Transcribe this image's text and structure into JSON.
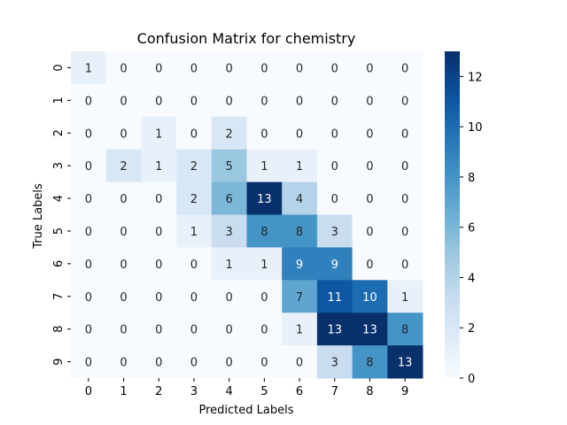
{
  "chart_data": {
    "type": "heatmap",
    "title": "Confusion Matrix for chemistry",
    "xlabel": "Predicted Labels",
    "ylabel": "True Labels",
    "x_categories": [
      "0",
      "1",
      "2",
      "3",
      "4",
      "5",
      "6",
      "7",
      "8",
      "9"
    ],
    "y_categories": [
      "0",
      "1",
      "2",
      "3",
      "4",
      "5",
      "6",
      "7",
      "8",
      "9"
    ],
    "values": [
      [
        1,
        0,
        0,
        0,
        0,
        0,
        0,
        0,
        0,
        0
      ],
      [
        0,
        0,
        0,
        0,
        0,
        0,
        0,
        0,
        0,
        0
      ],
      [
        0,
        0,
        1,
        0,
        2,
        0,
        0,
        0,
        0,
        0
      ],
      [
        0,
        2,
        1,
        2,
        5,
        1,
        1,
        0,
        0,
        0
      ],
      [
        0,
        0,
        0,
        2,
        6,
        13,
        4,
        0,
        0,
        0
      ],
      [
        0,
        0,
        0,
        1,
        3,
        8,
        8,
        3,
        0,
        0
      ],
      [
        0,
        0,
        0,
        0,
        1,
        1,
        9,
        9,
        0,
        0
      ],
      [
        0,
        0,
        0,
        0,
        0,
        0,
        7,
        11,
        10,
        1
      ],
      [
        0,
        0,
        0,
        0,
        0,
        0,
        1,
        13,
        13,
        8
      ],
      [
        0,
        0,
        0,
        0,
        0,
        0,
        0,
        3,
        8,
        13
      ]
    ],
    "colormap": "Blues",
    "vmin": 0,
    "vmax": 13,
    "colorbar_ticks": [
      0,
      2,
      4,
      6,
      8,
      10,
      12
    ],
    "annotations": true
  }
}
